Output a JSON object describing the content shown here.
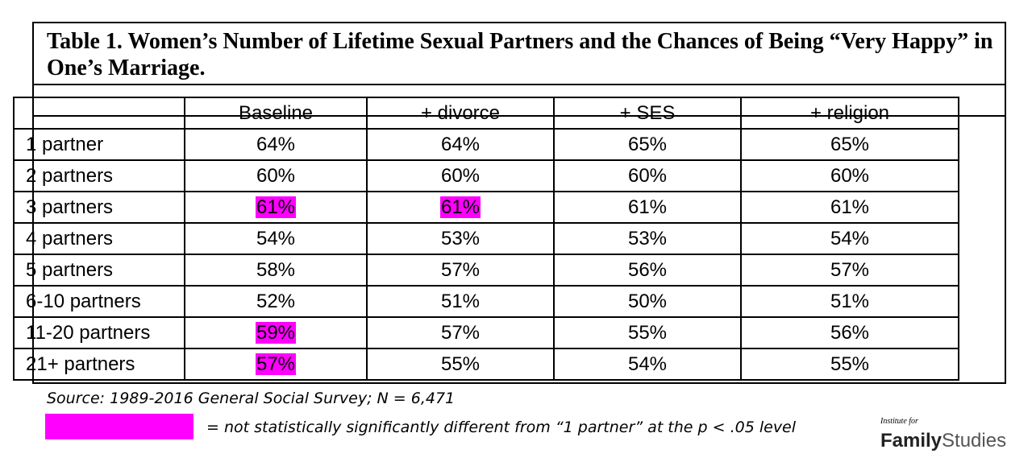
{
  "chart_data": {
    "type": "table",
    "title": "Table 1. Women’s Number of Lifetime Sexual Partners and the Chances of Being “Very Happy” in One’s Marriage.",
    "columns": [
      "",
      "Baseline",
      "+ divorce",
      "+ SES",
      "+ religion"
    ],
    "rows": [
      {
        "label": "1 partner",
        "values": [
          "64%",
          "64%",
          "65%",
          "65%"
        ],
        "highlight": [
          false,
          false,
          false,
          false
        ]
      },
      {
        "label": "2 partners",
        "values": [
          "60%",
          "60%",
          "60%",
          "60%"
        ],
        "highlight": [
          false,
          false,
          false,
          false
        ]
      },
      {
        "label": "3 partners",
        "values": [
          "61%",
          "61%",
          "61%",
          "61%"
        ],
        "highlight": [
          true,
          true,
          false,
          false
        ]
      },
      {
        "label": "4 partners",
        "values": [
          "54%",
          "53%",
          "53%",
          "54%"
        ],
        "highlight": [
          false,
          false,
          false,
          false
        ]
      },
      {
        "label": "5 partners",
        "values": [
          "58%",
          "57%",
          "56%",
          "57%"
        ],
        "highlight": [
          false,
          false,
          false,
          false
        ]
      },
      {
        "label": "6-10 partners",
        "values": [
          "52%",
          "51%",
          "50%",
          "51%"
        ],
        "highlight": [
          false,
          false,
          false,
          false
        ]
      },
      {
        "label": "11-20 partners",
        "values": [
          "59%",
          "57%",
          "55%",
          "56%"
        ],
        "highlight": [
          true,
          false,
          false,
          false
        ]
      },
      {
        "label": "21+ partners",
        "values": [
          "57%",
          "55%",
          "54%",
          "55%"
        ],
        "highlight": [
          true,
          false,
          false,
          false
        ]
      }
    ],
    "highlight_color": "#ff00ff",
    "source": "Source: 1989-2016 General Social Survey; N = 6,471",
    "legend": "= not statistically significantly different from “1 partner” at the p < .05 level"
  },
  "brand": {
    "small": "Institute for",
    "word1": "Family",
    "word2": "Studies"
  }
}
